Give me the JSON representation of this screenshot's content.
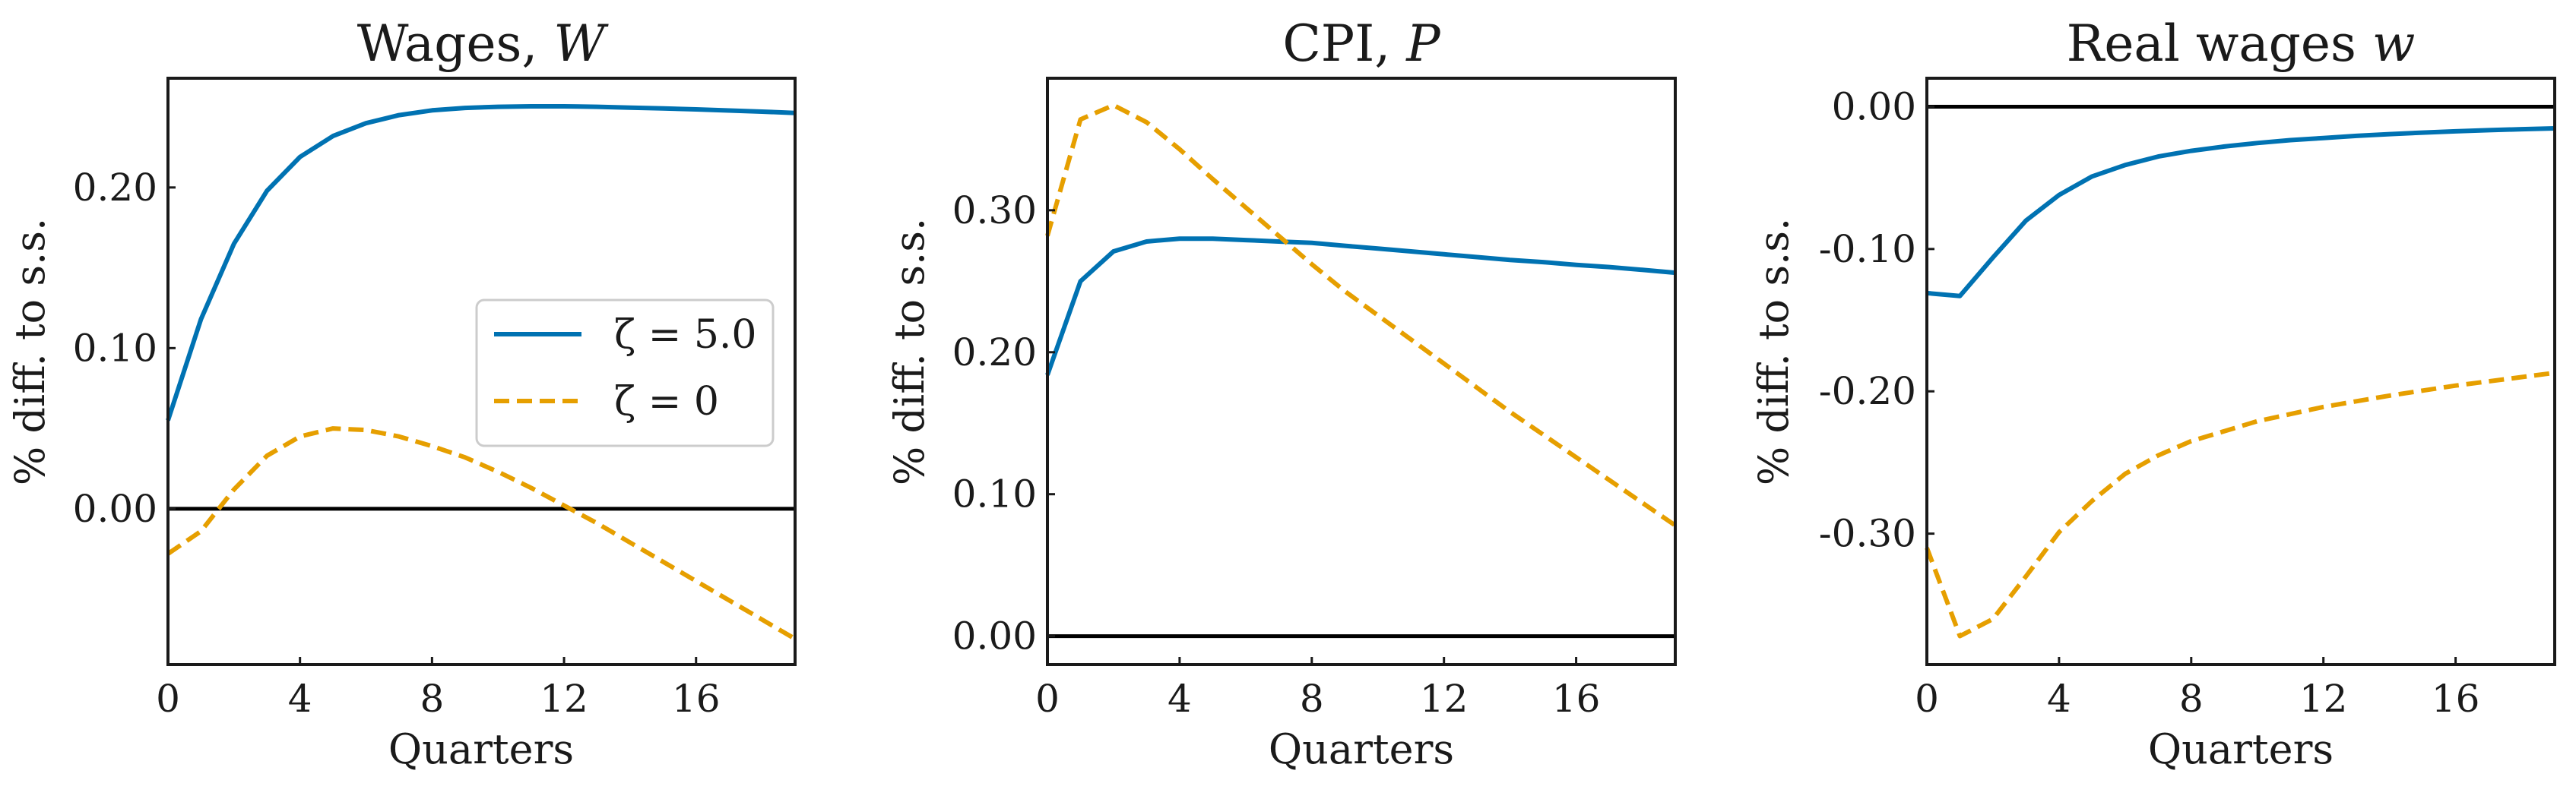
{
  "chart_data": [
    {
      "type": "line",
      "title": "Wages, ",
      "title_symbol": "W",
      "xlabel": "Quarters",
      "ylabel": "% diff. to s.s.",
      "xlim": [
        0,
        19
      ],
      "ylim": [
        -0.097,
        0.268
      ],
      "xticks": [
        0,
        4,
        8,
        12,
        16
      ],
      "xtick_labels": [
        "0",
        "4",
        "8",
        "12",
        "16"
      ],
      "yticks": [
        0.0,
        0.1,
        0.2
      ],
      "ytick_labels": [
        "0.00",
        "0.10",
        "0.20"
      ],
      "zero_line": 0,
      "legend": {
        "location": "center-right",
        "entries": [
          "ζ = 5.0",
          "ζ = 0"
        ]
      },
      "x": [
        0,
        1,
        2,
        3,
        4,
        5,
        6,
        7,
        8,
        9,
        10,
        11,
        12,
        13,
        14,
        15,
        16,
        17,
        18,
        19
      ],
      "series": [
        {
          "name": "ζ = 5.0",
          "style": "solid",
          "color": "#0072B2",
          "values": [
            0.055,
            0.118,
            0.165,
            0.198,
            0.219,
            0.232,
            0.24,
            0.245,
            0.248,
            0.2495,
            0.2502,
            0.2505,
            0.2505,
            0.2502,
            0.2497,
            0.2492,
            0.2486,
            0.2479,
            0.2472,
            0.2464
          ]
        },
        {
          "name": "ζ = 0",
          "style": "dashed",
          "color": "#E69F00",
          "values": [
            -0.028,
            -0.014,
            0.012,
            0.033,
            0.045,
            0.05,
            0.049,
            0.045,
            0.039,
            0.032,
            0.023,
            0.013,
            0.002,
            -0.009,
            -0.021,
            -0.033,
            -0.045,
            -0.057,
            -0.069,
            -0.081
          ]
        }
      ]
    },
    {
      "type": "line",
      "title": "CPI, ",
      "title_symbol": "P",
      "xlabel": "Quarters",
      "ylabel": "% diff. to s.s.",
      "xlim": [
        0,
        19
      ],
      "ylim": [
        -0.02,
        0.393
      ],
      "xticks": [
        0,
        4,
        8,
        12,
        16
      ],
      "xtick_labels": [
        "0",
        "4",
        "8",
        "12",
        "16"
      ],
      "yticks": [
        0.0,
        0.1,
        0.2,
        0.3
      ],
      "ytick_labels": [
        "0.00",
        "0.10",
        "0.20",
        "0.30"
      ],
      "zero_line": 0,
      "x": [
        0,
        1,
        2,
        3,
        4,
        5,
        6,
        7,
        8,
        9,
        10,
        11,
        12,
        13,
        14,
        15,
        16,
        17,
        18,
        19
      ],
      "series": [
        {
          "name": "ζ = 5.0",
          "style": "solid",
          "color": "#0072B2",
          "values": [
            0.184,
            0.25,
            0.271,
            0.278,
            0.28,
            0.28,
            0.279,
            0.278,
            0.277,
            0.275,
            0.273,
            0.271,
            0.269,
            0.267,
            0.265,
            0.2635,
            0.2615,
            0.26,
            0.258,
            0.256
          ]
        },
        {
          "name": "ζ = 0",
          "style": "dashed",
          "color": "#E69F00",
          "values": [
            0.282,
            0.364,
            0.374,
            0.362,
            0.343,
            0.322,
            0.302,
            0.282,
            0.262,
            0.243,
            0.226,
            0.209,
            0.192,
            0.175,
            0.158,
            0.142,
            0.126,
            0.11,
            0.094,
            0.078
          ]
        }
      ]
    },
    {
      "type": "line",
      "title": "Real wages ",
      "title_symbol": "w",
      "xlabel": "Quarters",
      "ylabel": "% diff. to s.s.",
      "xlim": [
        0,
        19
      ],
      "ylim": [
        -0.392,
        0.02
      ],
      "xticks": [
        0,
        4,
        8,
        12,
        16
      ],
      "xtick_labels": [
        "0",
        "4",
        "8",
        "12",
        "16"
      ],
      "yticks": [
        0.0,
        -0.1,
        -0.2,
        -0.3
      ],
      "ytick_labels": [
        "0.00",
        "-0.10",
        "-0.20",
        "-0.30"
      ],
      "zero_line": 0,
      "x": [
        0,
        1,
        2,
        3,
        4,
        5,
        6,
        7,
        8,
        9,
        10,
        11,
        12,
        13,
        14,
        15,
        16,
        17,
        18,
        19
      ],
      "series": [
        {
          "name": "ζ = 5.0",
          "style": "solid",
          "color": "#0072B2",
          "values": [
            -0.131,
            -0.133,
            -0.106,
            -0.08,
            -0.062,
            -0.049,
            -0.041,
            -0.035,
            -0.031,
            -0.028,
            -0.0255,
            -0.0235,
            -0.022,
            -0.0205,
            -0.0193,
            -0.0182,
            -0.0173,
            -0.0165,
            -0.0158,
            -0.0152
          ]
        },
        {
          "name": "ζ = 0",
          "style": "dashed",
          "color": "#E69F00",
          "values": [
            -0.31,
            -0.372,
            -0.36,
            -0.33,
            -0.299,
            -0.277,
            -0.258,
            -0.245,
            -0.235,
            -0.228,
            -0.221,
            -0.216,
            -0.211,
            -0.207,
            -0.203,
            -0.1995,
            -0.196,
            -0.193,
            -0.19,
            -0.187
          ]
        }
      ]
    }
  ]
}
